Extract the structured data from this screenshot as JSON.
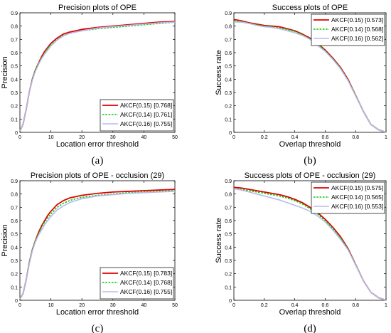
{
  "chart_data": [
    {
      "type": "line",
      "panel": "(a)",
      "title": "Precision plots of OPE",
      "xlabel": "Location error threshold",
      "ylabel": "Precision",
      "xlim": [
        0,
        50
      ],
      "ylim": [
        0,
        0.9
      ],
      "xticks": [
        "0",
        "10",
        "20",
        "30",
        "40",
        "50"
      ],
      "yticks": [
        "0",
        "0.1",
        "0.2",
        "0.3",
        "0.4",
        "0.5",
        "0.6",
        "0.7",
        "0.8",
        "0.9"
      ],
      "legend_position": "bottom-right",
      "grid": false,
      "x": [
        0,
        1,
        2,
        3,
        4,
        5,
        6,
        7,
        8,
        9,
        10,
        12,
        14,
        16,
        18,
        20,
        25,
        30,
        35,
        40,
        45,
        50
      ],
      "series": [
        {
          "name": "AKCF(0.15) [0.768]",
          "color": "#e00000",
          "dash": "solid",
          "values": [
            0.01,
            0.06,
            0.17,
            0.3,
            0.4,
            0.47,
            0.52,
            0.57,
            0.61,
            0.64,
            0.67,
            0.71,
            0.74,
            0.755,
            0.765,
            0.775,
            0.79,
            0.8,
            0.81,
            0.82,
            0.83,
            0.835
          ]
        },
        {
          "name": "AKCF(0.14) [0.761]",
          "color": "#00cc00",
          "dash": "dotted",
          "values": [
            0.01,
            0.06,
            0.17,
            0.3,
            0.4,
            0.47,
            0.52,
            0.56,
            0.6,
            0.63,
            0.66,
            0.7,
            0.73,
            0.745,
            0.755,
            0.765,
            0.78,
            0.79,
            0.8,
            0.81,
            0.82,
            0.83
          ]
        },
        {
          "name": "AKCF(0.16) [0.755]",
          "color": "#b8b8ee",
          "dash": "solid",
          "values": [
            0.01,
            0.06,
            0.17,
            0.3,
            0.39,
            0.46,
            0.51,
            0.555,
            0.59,
            0.62,
            0.65,
            0.695,
            0.725,
            0.745,
            0.755,
            0.765,
            0.785,
            0.795,
            0.805,
            0.815,
            0.825,
            0.83
          ]
        }
      ]
    },
    {
      "type": "line",
      "panel": "(b)",
      "title": "Success plots of OPE",
      "xlabel": "Overlap threshold",
      "ylabel": "Success rate",
      "xlim": [
        0,
        1
      ],
      "ylim": [
        0,
        0.9
      ],
      "xticks": [
        "0",
        "0.2",
        "0.4",
        "0.6",
        "0.8",
        "1"
      ],
      "yticks": [
        "0",
        "0.1",
        "0.2",
        "0.3",
        "0.4",
        "0.5",
        "0.6",
        "0.7",
        "0.8",
        "0.9"
      ],
      "legend_position": "top-right",
      "grid": false,
      "x": [
        0,
        0.05,
        0.1,
        0.15,
        0.2,
        0.25,
        0.3,
        0.35,
        0.4,
        0.45,
        0.5,
        0.55,
        0.6,
        0.65,
        0.7,
        0.75,
        0.8,
        0.85,
        0.9,
        0.95,
        1.0
      ],
      "series": [
        {
          "name": "AKCF(0.15) [0.573]",
          "color": "#e00000",
          "dash": "solid",
          "values": [
            0.85,
            0.84,
            0.825,
            0.815,
            0.805,
            0.8,
            0.795,
            0.78,
            0.765,
            0.74,
            0.71,
            0.67,
            0.62,
            0.56,
            0.49,
            0.4,
            0.28,
            0.16,
            0.06,
            0.02,
            0.0
          ]
        },
        {
          "name": "AKCF(0.14) [0.568]",
          "color": "#00cc00",
          "dash": "dotted",
          "values": [
            0.84,
            0.835,
            0.82,
            0.81,
            0.8,
            0.795,
            0.785,
            0.775,
            0.76,
            0.735,
            0.705,
            0.665,
            0.615,
            0.555,
            0.485,
            0.395,
            0.28,
            0.16,
            0.06,
            0.02,
            0.0
          ]
        },
        {
          "name": "AKCF(0.16) [0.562]",
          "color": "#b8b8ee",
          "dash": "solid",
          "values": [
            0.83,
            0.83,
            0.82,
            0.805,
            0.795,
            0.79,
            0.78,
            0.765,
            0.75,
            0.73,
            0.7,
            0.655,
            0.61,
            0.55,
            0.48,
            0.39,
            0.275,
            0.16,
            0.06,
            0.02,
            0.0
          ]
        }
      ]
    },
    {
      "type": "line",
      "panel": "(c)",
      "title": "Precision plots of OPE - occlusion (29)",
      "xlabel": "Location error threshold",
      "ylabel": "Precision",
      "xlim": [
        0,
        50
      ],
      "ylim": [
        0,
        0.9
      ],
      "xticks": [
        "0",
        "10",
        "20",
        "30",
        "40",
        "50"
      ],
      "yticks": [
        "0",
        "0.1",
        "0.2",
        "0.3",
        "0.4",
        "0.5",
        "0.6",
        "0.7",
        "0.8",
        "0.9"
      ],
      "legend_position": "bottom-right",
      "grid": false,
      "x": [
        0,
        1,
        2,
        3,
        4,
        5,
        6,
        7,
        8,
        9,
        10,
        12,
        14,
        16,
        18,
        20,
        25,
        30,
        35,
        40,
        45,
        50
      ],
      "series": [
        {
          "name": "AKCF(0.15) [0.783]",
          "color": "#e00000",
          "dash": "solid",
          "values": [
            0.01,
            0.05,
            0.15,
            0.28,
            0.38,
            0.45,
            0.51,
            0.56,
            0.6,
            0.64,
            0.67,
            0.72,
            0.75,
            0.77,
            0.78,
            0.79,
            0.805,
            0.815,
            0.82,
            0.825,
            0.83,
            0.835
          ]
        },
        {
          "name": "AKCF(0.14) [0.768]",
          "color": "#00cc00",
          "dash": "dotted",
          "values": [
            0.01,
            0.05,
            0.15,
            0.28,
            0.38,
            0.45,
            0.5,
            0.55,
            0.59,
            0.62,
            0.65,
            0.7,
            0.73,
            0.75,
            0.765,
            0.775,
            0.79,
            0.8,
            0.81,
            0.815,
            0.82,
            0.825
          ]
        },
        {
          "name": "AKCF(0.16) [0.755]",
          "color": "#b8b8ee",
          "dash": "solid",
          "values": [
            0.01,
            0.05,
            0.15,
            0.27,
            0.37,
            0.44,
            0.49,
            0.53,
            0.57,
            0.6,
            0.63,
            0.68,
            0.71,
            0.735,
            0.75,
            0.765,
            0.785,
            0.795,
            0.805,
            0.81,
            0.815,
            0.82
          ]
        }
      ]
    },
    {
      "type": "line",
      "panel": "(d)",
      "title": "Success plots of OPE - occlusion (29)",
      "xlabel": "Overlap threshold",
      "ylabel": "Success rate",
      "xlim": [
        0,
        1
      ],
      "ylim": [
        0,
        0.9
      ],
      "xticks": [
        "0",
        "0.2",
        "0.4",
        "0.6",
        "0.8",
        "1"
      ],
      "yticks": [
        "0",
        "0.1",
        "0.2",
        "0.3",
        "0.4",
        "0.5",
        "0.6",
        "0.7",
        "0.8",
        "0.9"
      ],
      "legend_position": "top-right",
      "grid": false,
      "x": [
        0,
        0.05,
        0.1,
        0.15,
        0.2,
        0.25,
        0.3,
        0.35,
        0.4,
        0.45,
        0.5,
        0.55,
        0.6,
        0.65,
        0.7,
        0.75,
        0.8,
        0.85,
        0.9,
        0.95,
        1.0
      ],
      "series": [
        {
          "name": "AKCF(0.15) [0.575]",
          "color": "#e00000",
          "dash": "solid",
          "values": [
            0.85,
            0.845,
            0.835,
            0.825,
            0.815,
            0.805,
            0.795,
            0.78,
            0.76,
            0.735,
            0.7,
            0.66,
            0.61,
            0.55,
            0.48,
            0.39,
            0.27,
            0.15,
            0.06,
            0.02,
            0.0
          ]
        },
        {
          "name": "AKCF(0.14) [0.565]",
          "color": "#00cc00",
          "dash": "dotted",
          "values": [
            0.84,
            0.835,
            0.825,
            0.815,
            0.805,
            0.795,
            0.785,
            0.77,
            0.75,
            0.725,
            0.69,
            0.65,
            0.6,
            0.54,
            0.47,
            0.385,
            0.27,
            0.15,
            0.06,
            0.02,
            0.0
          ]
        },
        {
          "name": "AKCF(0.16) [0.553]",
          "color": "#b8b8ee",
          "dash": "solid",
          "values": [
            0.84,
            0.83,
            0.815,
            0.8,
            0.785,
            0.77,
            0.755,
            0.735,
            0.715,
            0.695,
            0.67,
            0.635,
            0.59,
            0.53,
            0.46,
            0.38,
            0.265,
            0.15,
            0.06,
            0.02,
            0.0
          ]
        }
      ]
    }
  ]
}
